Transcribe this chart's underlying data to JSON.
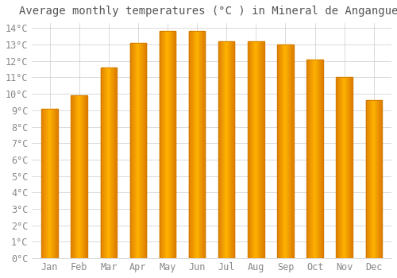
{
  "title": "Average monthly temperatures (°C ) in Mineral de Angangueo",
  "months": [
    "Jan",
    "Feb",
    "Mar",
    "Apr",
    "May",
    "Jun",
    "Jul",
    "Aug",
    "Sep",
    "Oct",
    "Nov",
    "Dec"
  ],
  "values": [
    9.1,
    9.9,
    11.6,
    13.1,
    13.8,
    13.8,
    13.2,
    13.2,
    13.0,
    12.1,
    11.0,
    9.6
  ],
  "bar_color_center": "#FFB300",
  "bar_color_edge": "#E08000",
  "background_color": "#FFFFFF",
  "grid_color": "#CCCCCC",
  "text_color": "#888888",
  "title_color": "#555555",
  "ylim": [
    0,
    14
  ],
  "ytick_step": 1,
  "title_fontsize": 10,
  "tick_fontsize": 8.5,
  "bar_width": 0.55
}
